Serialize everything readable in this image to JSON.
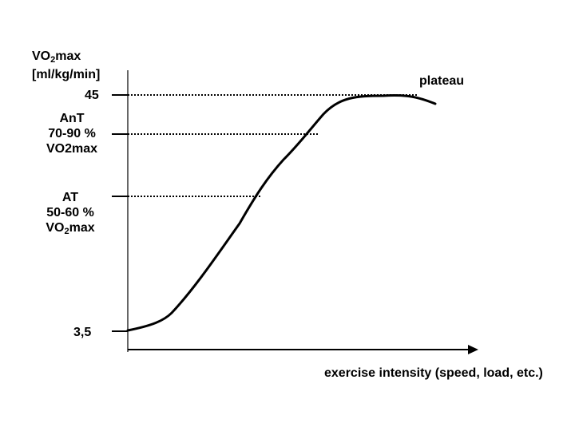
{
  "diagram": {
    "y_axis_label": {
      "line1_prefix": "VO",
      "line1_sub": "2",
      "line1_suffix": "max",
      "line2": "[ml/kg/min]"
    },
    "x_axis_label": "exercise intensity (speed, load, etc.)",
    "plateau_label": "plateau",
    "ticks": {
      "max": "45",
      "ant": {
        "line1": "AnT",
        "line2": "70-90 %",
        "line3": "VO2max"
      },
      "at": {
        "line1": "AT",
        "line2": "50-60 %",
        "line3_prefix": "VO",
        "line3_sub": "2",
        "line3_suffix": "max"
      },
      "rest": "3,5"
    }
  }
}
